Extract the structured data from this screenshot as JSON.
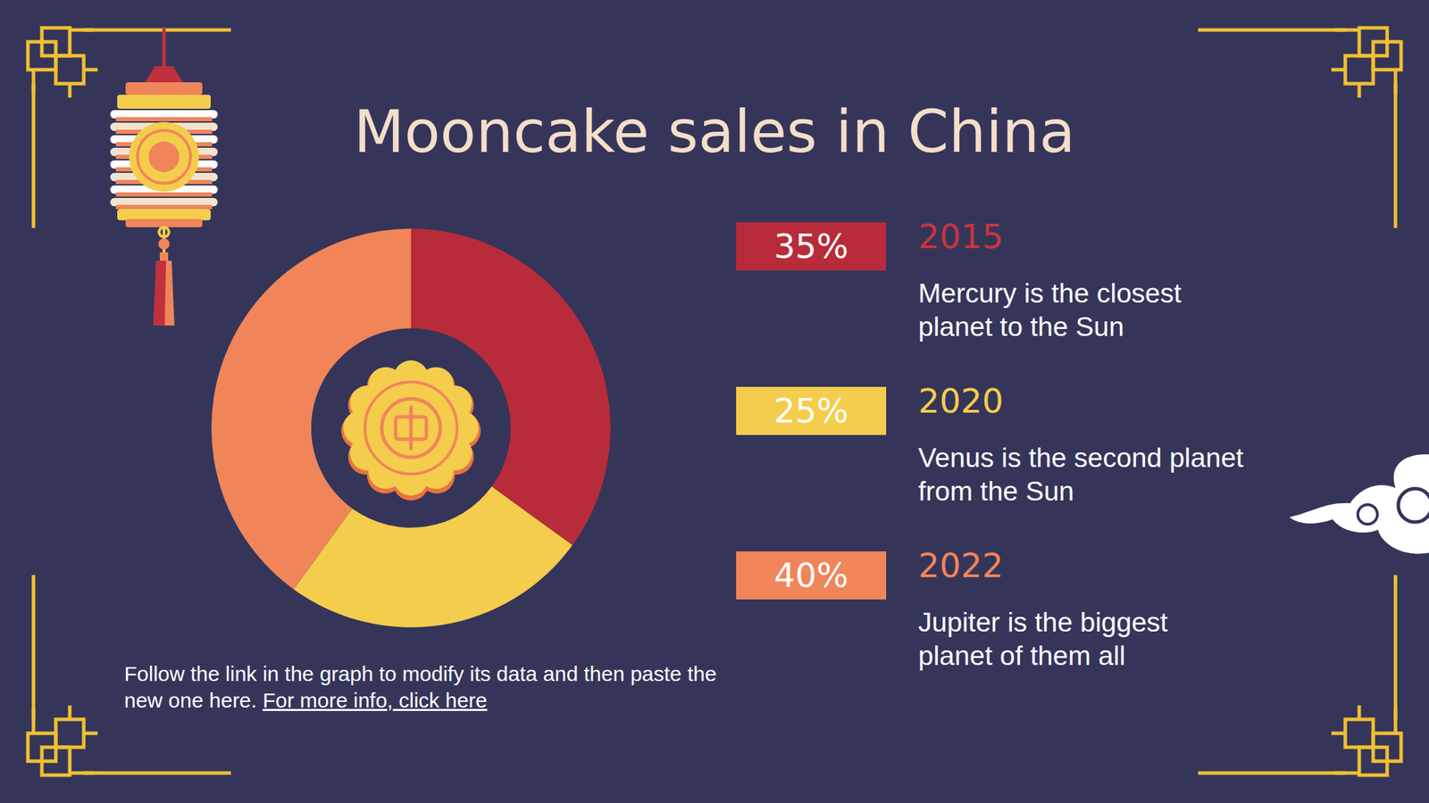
{
  "chart_data": {
    "type": "pie",
    "title": "Mooncake sales in China",
    "categories": [
      "2015",
      "2020",
      "2022"
    ],
    "values": [
      35,
      25,
      40
    ],
    "value_labels": [
      "35%",
      "25%",
      "40%"
    ],
    "colors": [
      "#b82b3a",
      "#f5cd4c",
      "#f0855a"
    ],
    "descriptions": [
      "Mercury is the closest planet to the Sun",
      "Venus is the second planet from the Sun",
      "Jupiter is the biggest planet of them all"
    ]
  },
  "footer": {
    "text": "Follow the link in the graph to modify its data and then paste the new one here.",
    "link": "For more info, click here"
  }
}
